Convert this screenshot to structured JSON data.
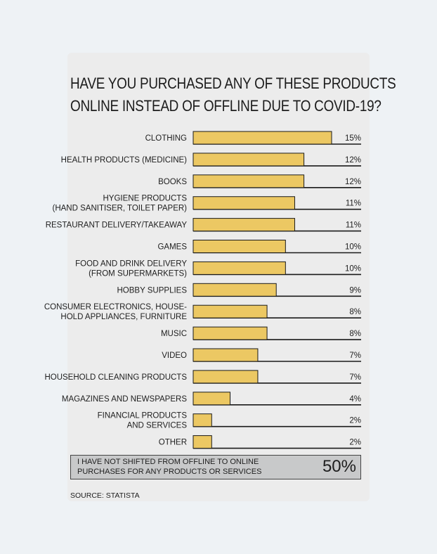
{
  "chart_data": {
    "type": "bar",
    "title": "HAVE YOU PURCHASED ANY OF THESE PRODUCTS ONLINE INSTEAD OF OFFLINE DUE TO COVID-19?",
    "title_lines": [
      "HAVE YOU PURCHASED ANY OF THESE PRODUCTS",
      "ONLINE INSTEAD OF OFFLINE DUE TO COVID-19?"
    ],
    "orientation": "horizontal",
    "categories": [
      [
        "CLOTHING"
      ],
      [
        "HEALTH PRODUCTS (MEDICINE)"
      ],
      [
        "BOOKS"
      ],
      [
        "HYGIENE PRODUCTS",
        "(HAND SANITISER, TOILET PAPER)"
      ],
      [
        "RESTAURANT DELIVERY/TAKEAWAY"
      ],
      [
        "GAMES"
      ],
      [
        "FOOD AND DRINK DELIVERY",
        "(FROM SUPERMARKETS)"
      ],
      [
        "HOBBY SUPPLIES"
      ],
      [
        "CONSUMER ELECTRONICS, HOUSE-",
        "HOLD APPLIANCES, FURNITURE"
      ],
      [
        "MUSIC"
      ],
      [
        "VIDEO"
      ],
      [
        "HOUSEHOLD CLEANING PRODUCTS"
      ],
      [
        "MAGAZINES AND NEWSPAPERS"
      ],
      [
        "FINANCIAL PRODUCTS",
        "AND SERVICES"
      ],
      [
        "OTHER"
      ]
    ],
    "values": [
      15,
      12,
      12,
      11,
      11,
      10,
      10,
      9,
      8,
      8,
      7,
      7,
      4,
      2,
      2
    ],
    "value_labels": [
      "15%",
      "12%",
      "12%",
      "11%",
      "11%",
      "10%",
      "10%",
      "9%",
      "8%",
      "8%",
      "7%",
      "7%",
      "4%",
      "2%",
      "2%"
    ],
    "unit": "%",
    "xlim": [
      0,
      15
    ],
    "grid": false,
    "legend": "none",
    "bar_color": "#ecc863"
  },
  "footer": {
    "text_lines": [
      "I HAVE NOT SHIFTED FROM OFFLINE TO ONLINE",
      "PURCHASES FOR ANY PRODUCTS OR SERVICES"
    ],
    "value": "50%"
  },
  "source": "SOURCE: STATISTA",
  "colors": {
    "background": "#eef2f5",
    "card": "#ececec",
    "bar": "#ecc863",
    "footer_box": "#c8c9ca",
    "text": "#1e1e1e"
  }
}
